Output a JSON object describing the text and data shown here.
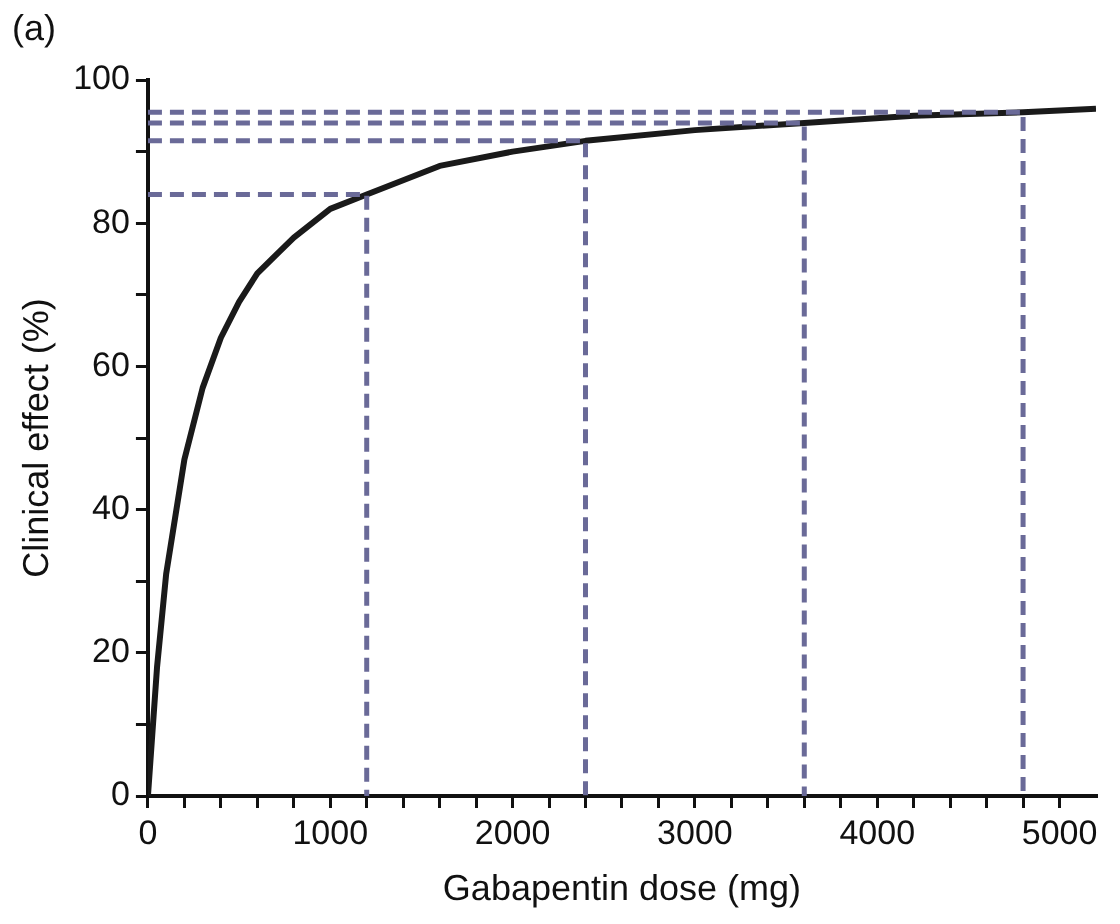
{
  "chart_data": {
    "type": "line",
    "xlabel": "Gabapentin dose (mg)",
    "ylabel": "Clinical effect (%)",
    "annotations": [
      "(a)"
    ],
    "xlim": [
      0,
      5200
    ],
    "ylim": [
      0,
      100
    ],
    "xticks": [
      0,
      {
        "value": 200,
        "label": null
      },
      {
        "value": 400,
        "label": null
      },
      {
        "value": 600,
        "label": null
      },
      {
        "value": 800,
        "label": null
      },
      1000,
      {
        "value": 1200,
        "label": null
      },
      {
        "value": 1400,
        "label": null
      },
      {
        "value": 1600,
        "label": null
      },
      {
        "value": 1800,
        "label": null
      },
      2000,
      {
        "value": 2200,
        "label": null
      },
      {
        "value": 2400,
        "label": null
      },
      {
        "value": 2600,
        "label": null
      },
      {
        "value": 2800,
        "label": null
      },
      3000,
      {
        "value": 3200,
        "label": null
      },
      {
        "value": 3400,
        "label": null
      },
      {
        "value": 3600,
        "label": null
      },
      {
        "value": 3800,
        "label": null
      },
      4000,
      {
        "value": 4200,
        "label": null
      },
      {
        "value": 4400,
        "label": null
      },
      {
        "value": 4600,
        "label": null
      },
      {
        "value": 4800,
        "label": null
      },
      5000
    ],
    "yticks": [
      0,
      {
        "value": 10,
        "label": null
      },
      20,
      {
        "value": 30,
        "label": null
      },
      40,
      {
        "value": 50,
        "label": null
      },
      60,
      {
        "value": 70,
        "label": null
      },
      80,
      {
        "value": 90,
        "label": null
      },
      100
    ],
    "grid": false,
    "legend": false,
    "marker": "none",
    "series": [
      {
        "color": "#1a1a1a",
        "line_style": "solid",
        "x": [
          0,
          50,
          100,
          200,
          300,
          400,
          500,
          600,
          800,
          1000,
          1200,
          1600,
          2000,
          2400,
          3000,
          3600,
          4200,
          4800,
          5200
        ],
        "values": [
          0,
          18,
          31,
          47,
          57,
          64,
          69,
          73,
          78,
          82,
          84,
          88,
          90,
          91.5,
          93,
          94,
          95,
          95.5,
          96
        ]
      },
      {
        "color": "#6a6a98",
        "line_style": "dashed",
        "x": [
          0,
          1200,
          1200
        ],
        "values": [
          84,
          84,
          0
        ]
      },
      {
        "color": "#6a6a98",
        "line_style": "dashed",
        "x": [
          0,
          2400,
          2400
        ],
        "values": [
          91.5,
          91.5,
          0
        ]
      },
      {
        "color": "#6a6a98",
        "line_style": "dashed",
        "x": [
          0,
          3600,
          3600
        ],
        "values": [
          94,
          94,
          0
        ]
      },
      {
        "color": "#6a6a98",
        "line_style": "dashed",
        "x": [
          0,
          4800,
          4800
        ],
        "values": [
          95.5,
          95.5,
          0
        ]
      }
    ]
  }
}
